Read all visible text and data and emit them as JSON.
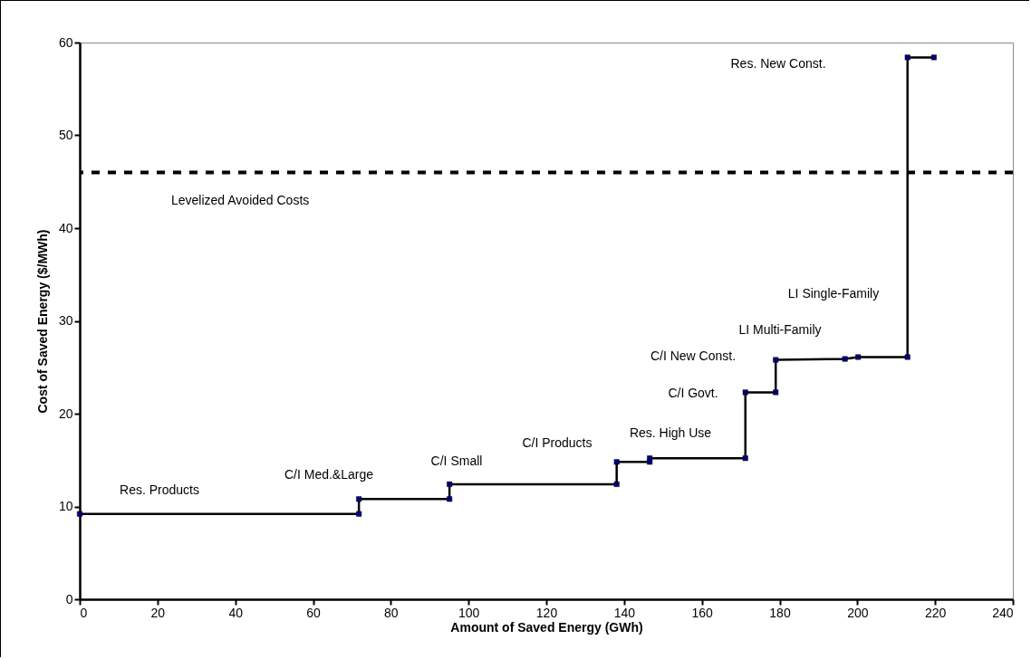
{
  "chart_data": {
    "type": "line",
    "xlabel": "Amount of Saved Energy (GWh)",
    "ylabel": "Cost of Saved Energy ($/MWh)",
    "xlim": [
      0,
      240
    ],
    "xticks": [
      0,
      20,
      40,
      60,
      80,
      100,
      120,
      140,
      160,
      180,
      200,
      220,
      240
    ],
    "ylim": [
      0,
      60
    ],
    "yticks": [
      0,
      10,
      20,
      30,
      40,
      50,
      60
    ],
    "grid": false,
    "marker": "square",
    "line_style": "solid",
    "series": [
      {
        "color": "#000000",
        "x": [
          0,
          71.8,
          71.8,
          95.1,
          95.1,
          138.1,
          138.1,
          146.6,
          146.6,
          171.2,
          171.2,
          179,
          179,
          196.8,
          200.2,
          212.9,
          212.9,
          219.7
        ],
        "values": [
          9.2,
          9.2,
          10.8,
          10.8,
          12.4,
          12.4,
          14.8,
          14.8,
          15.2,
          15.2,
          22.3,
          22.3,
          25.8,
          25.9,
          26.1,
          26.1,
          58.4,
          58.4
        ]
      }
    ],
    "ref_lines": [
      {
        "axis": "y",
        "value": 46,
        "label": "Levelized Avoided Costs",
        "color": "#000000",
        "line_style": "dashed"
      }
    ],
    "annotations": [
      "Res. Products",
      "C/I Med.&Large",
      "C/I Small",
      "C/I Products",
      "Res. High Use",
      "C/I Govt.",
      "C/I New Const.",
      "LI Multi-Family",
      "LI Single-Family",
      "Res. New Const."
    ]
  }
}
